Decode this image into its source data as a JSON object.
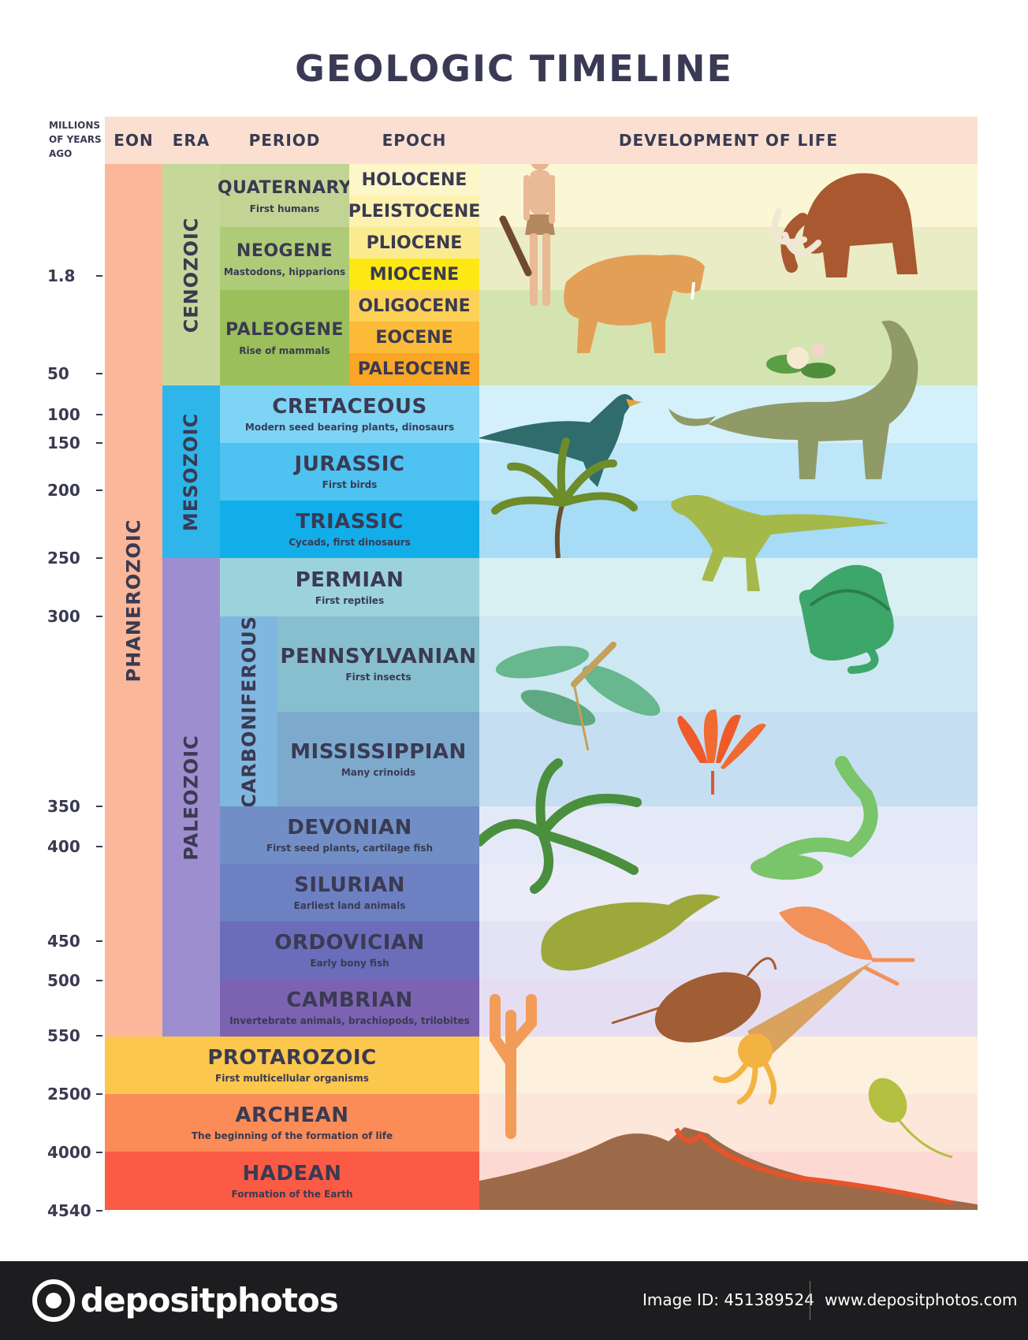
{
  "title": "GEOLOGIC TIMELINE",
  "mya_header": [
    "MILLIONS",
    "OF YEARS",
    "AGO"
  ],
  "headers": {
    "eon": "EON",
    "era": "ERA",
    "period": "PERIOD",
    "epoch": "EPOCH",
    "life": "DEVELOPMENT OF LIFE"
  },
  "ticks": [
    "1.8",
    "50",
    "100",
    "150",
    "200",
    "250",
    "300",
    "350",
    "400",
    "450",
    "500",
    "550",
    "2500",
    "4000",
    "4540"
  ],
  "eons": {
    "phanerozoic": "PHANEROZOIC",
    "protarozoic": {
      "name": "PROTAROZOIC",
      "desc": "First multicellular organisms"
    },
    "archean": {
      "name": "ARCHEAN",
      "desc": "The beginning of the formation of life"
    },
    "hadean": {
      "name": "HADEAN",
      "desc": "Formation of the Earth"
    }
  },
  "eras": {
    "cenozoic": "CENOZOIC",
    "mesozoic": "MESOZOIC",
    "paleozoic": "PALEOZOIC"
  },
  "carboniferous": "CARBONIFEROUS",
  "periods": {
    "quaternary": {
      "name": "QUATERNARY",
      "desc": "First humans"
    },
    "neogene": {
      "name": "NEOGENE",
      "desc": "Mastodons, hipparions"
    },
    "paleogene": {
      "name": "PALEOGENE",
      "desc": "Rise of mammals"
    },
    "cretaceous": {
      "name": "CRETACEOUS",
      "desc": "Modern seed bearing plants, dinosaurs"
    },
    "jurassic": {
      "name": "JURASSIC",
      "desc": "First birds"
    },
    "triassic": {
      "name": "TRIASSIC",
      "desc": "Cycads, first dinosaurs"
    },
    "permian": {
      "name": "PERMIAN",
      "desc": "First reptiles"
    },
    "pennsylvanian": {
      "name": "PENNSYLVANIAN",
      "desc": "First insects"
    },
    "mississippian": {
      "name": "MISSISSIPPIAN",
      "desc": "Many crinoids"
    },
    "devonian": {
      "name": "DEVONIAN",
      "desc": "First seed plants, cartilage fish"
    },
    "silurian": {
      "name": "SILURIAN",
      "desc": "Earliest land animals"
    },
    "ordovician": {
      "name": "ORDOVICIAN",
      "desc": "Early bony fish"
    },
    "cambrian": {
      "name": "CAMBRIAN",
      "desc": "Invertebrate animals, brachiopods, trilobites"
    }
  },
  "epochs": [
    "HOLOCENE",
    "PLEISTOCENE",
    "PLIOCENE",
    "MIOCENE",
    "OLIGOCENE",
    "EOCENE",
    "PALEOCENE"
  ],
  "footer": {
    "brand": "depositphotos",
    "image_id": "Image ID: 451389524",
    "url": "www.depositphotos.com"
  },
  "colors": {
    "eon_phanerozoic": "#fbb79a",
    "cenozoic": "#c5d89a",
    "mesozoic": "#2eb5ea",
    "paleozoic": "#9d8fcf",
    "protarozoic": "#fcc74d",
    "archean": "#fb8c57",
    "hadean": "#fb5a45",
    "miocene": "#fde813",
    "header": "#fbe0d2"
  },
  "icons": [
    "caveman-icon",
    "mammoth-icon",
    "sabertooth-icon",
    "magnolia-icon",
    "archaeopteryx-icon",
    "sauropod-icon",
    "cycad-icon",
    "theropod-icon",
    "dimetrodon-icon",
    "dragonfly-icon",
    "crinoid-icon",
    "fern-icon",
    "amphibian-icon",
    "fish-icon",
    "sea-scorpion-icon",
    "trilobite-icon",
    "coral-icon",
    "nautiloid-icon",
    "bacterium-icon",
    "volcano-icon"
  ]
}
